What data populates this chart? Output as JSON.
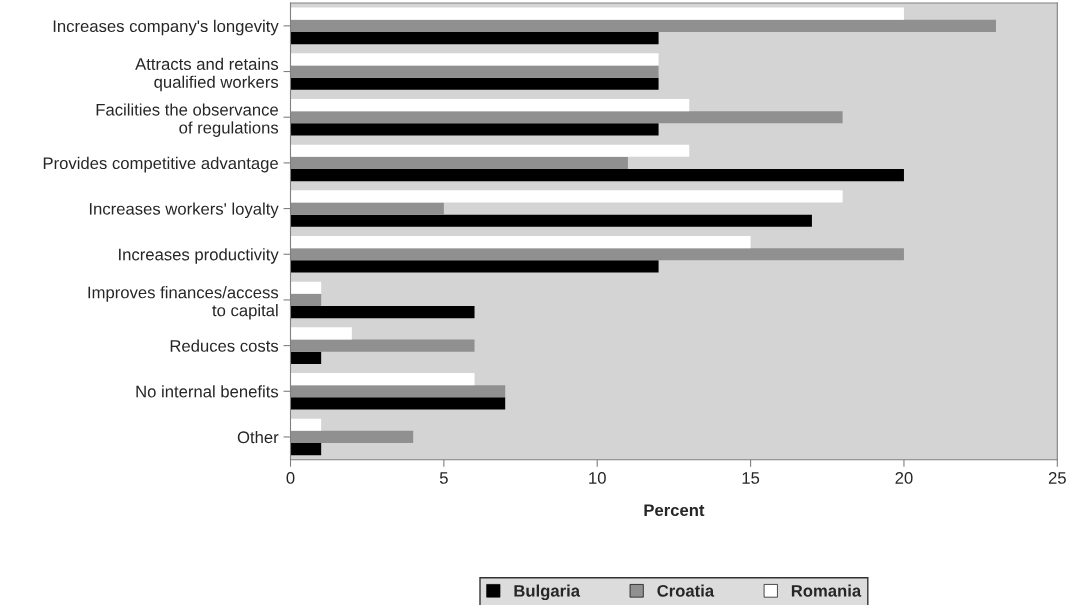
{
  "chart_data": {
    "type": "bar",
    "orientation": "horizontal",
    "xlabel": "Percent",
    "categories": [
      "Increases company's longevity",
      "Attracts and retains\nqualified workers",
      "Facilities the observance\nof regulations",
      "Provides competitive advantage",
      "Increases workers' loyalty",
      "Increases productivity",
      "Improves finances/access\nto capital",
      "Reduces costs",
      "No internal benefits",
      "Other"
    ],
    "series": [
      {
        "name": "Bulgaria",
        "color": "#000000",
        "values": [
          12,
          12,
          12,
          20,
          17,
          12,
          6,
          1,
          7,
          1
        ]
      },
      {
        "name": "Croatia",
        "color": "#909090",
        "values": [
          23,
          12,
          18,
          11,
          5,
          20,
          1,
          6,
          7,
          4
        ]
      },
      {
        "name": "Romania",
        "color": "#ffffff",
        "values": [
          20,
          12,
          13,
          13,
          18,
          15,
          1,
          2,
          6,
          1
        ]
      }
    ],
    "xlim": [
      0,
      25
    ],
    "xticks": [
      0,
      5,
      10,
      15,
      20,
      25
    ],
    "grid": false,
    "legend": "bottom"
  }
}
